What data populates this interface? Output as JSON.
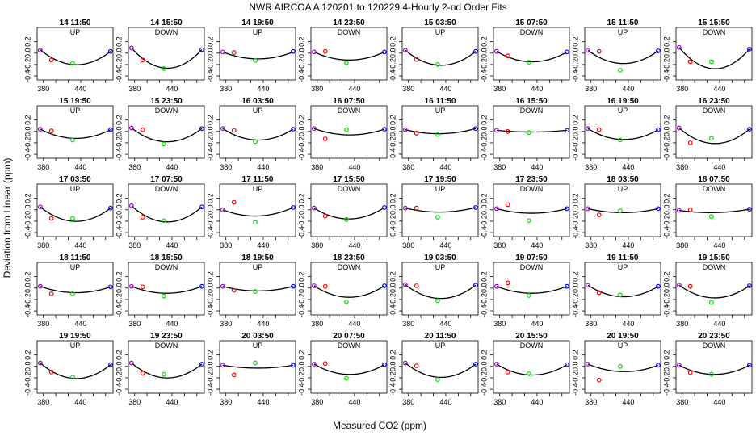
{
  "figure": {
    "title": "NWR   AIRCOA A   120201 to 120229   4-Hourly 2-nd Order Fits",
    "xlabel": "Measured CO2 (ppm)",
    "ylabel": "Deviation from Linear (ppm)"
  },
  "colors": {
    "fit_line": "#000000",
    "standard_1": "#9900cc",
    "standard_2": "#ff0000",
    "standard_3": "#00dd00",
    "standard_4": "#0000ff"
  },
  "chart_data": {
    "type": "scatter",
    "layout": "small multiples, 5 rows x 8 columns",
    "x_standards": [
      375,
      393,
      427,
      488
    ],
    "xlim": [
      370,
      492
    ],
    "ylim": [
      -0.47,
      0.45
    ],
    "x_ticks": [
      380,
      440
    ],
    "x_tick_labels": [
      "380",
      "440"
    ],
    "y_ticks": [
      -0.4,
      -0.2,
      0,
      0.2
    ],
    "y_tick_labels": [
      "-0.4",
      "-0.2",
      "0.0",
      "0.2"
    ],
    "panels": [
      {
        "title": "14 11:50",
        "dir": "UP",
        "y": [
          0.05,
          -0.12,
          -0.18,
          0.03
        ],
        "fit": [
          0.06,
          -0.1,
          -0.2,
          0.03
        ]
      },
      {
        "title": "14 15:50",
        "dir": "DOWN",
        "y": [
          0.09,
          -0.12,
          -0.27,
          0.06
        ],
        "fit": [
          0.09,
          -0.12,
          -0.26,
          0.06
        ]
      },
      {
        "title": "14 19:50",
        "dir": "UP",
        "y": [
          0.02,
          0.01,
          -0.13,
          0.03
        ],
        "fit": [
          0.02,
          -0.04,
          -0.1,
          0.02
        ]
      },
      {
        "title": "14 23:50",
        "dir": "DOWN",
        "y": [
          0.02,
          0.03,
          -0.17,
          0.02
        ],
        "fit": [
          0.02,
          -0.05,
          -0.12,
          0.02
        ]
      },
      {
        "title": "15 03:50",
        "dir": "UP",
        "y": [
          0.05,
          -0.11,
          -0.2,
          0.03
        ],
        "fit": [
          0.05,
          -0.11,
          -0.21,
          0.03
        ]
      },
      {
        "title": "15 07:50",
        "dir": "DOWN",
        "y": [
          0.03,
          -0.05,
          -0.16,
          0.02
        ],
        "fit": [
          0.03,
          -0.08,
          -0.15,
          0.02
        ]
      },
      {
        "title": "15 11:50",
        "dir": "UP",
        "y": [
          0.05,
          0.03,
          -0.3,
          0.04
        ],
        "fit": [
          0.05,
          -0.08,
          -0.18,
          0.04
        ]
      },
      {
        "title": "15 15:50",
        "dir": "DOWN",
        "y": [
          0.1,
          -0.15,
          -0.15,
          0.07
        ],
        "fit": [
          0.1,
          -0.13,
          -0.27,
          0.07
        ]
      },
      {
        "title": "15 19:50",
        "dir": "UP",
        "y": [
          0.04,
          0.01,
          -0.15,
          0.03
        ],
        "fit": [
          0.04,
          -0.05,
          -0.12,
          0.03
        ]
      },
      {
        "title": "15 23:50",
        "dir": "DOWN",
        "y": [
          0.06,
          0.03,
          -0.22,
          0.05
        ],
        "fit": [
          0.06,
          -0.08,
          -0.18,
          0.05
        ]
      },
      {
        "title": "16 03:50",
        "dir": "UP",
        "y": [
          0.05,
          0.02,
          -0.18,
          0.04
        ],
        "fit": [
          0.05,
          -0.06,
          -0.15,
          0.04
        ]
      },
      {
        "title": "16 07:50",
        "dir": "DOWN",
        "y": [
          0.05,
          -0.13,
          0.03,
          0.04
        ],
        "fit": [
          0.05,
          -0.02,
          -0.06,
          0.04
        ]
      },
      {
        "title": "16 11:50",
        "dir": "UP",
        "y": [
          0.03,
          -0.03,
          -0.05,
          0.05
        ],
        "fit": [
          0.03,
          -0.01,
          -0.04,
          0.05
        ]
      },
      {
        "title": "16 15:50",
        "dir": "DOWN",
        "y": [
          0.02,
          0.0,
          -0.02,
          0.02
        ],
        "fit": [
          0.02,
          0.0,
          -0.01,
          0.02
        ]
      },
      {
        "title": "16 19:50",
        "dir": "UP",
        "y": [
          0.05,
          0.03,
          -0.15,
          0.03
        ],
        "fit": [
          0.05,
          -0.06,
          -0.14,
          0.03
        ]
      },
      {
        "title": "16 23:50",
        "dir": "DOWN",
        "y": [
          0.06,
          -0.2,
          -0.12,
          0.04
        ],
        "fit": [
          0.06,
          -0.11,
          -0.21,
          0.04
        ]
      },
      {
        "title": "17 03:50",
        "dir": "UP",
        "y": [
          0.05,
          -0.15,
          -0.15,
          0.03
        ],
        "fit": [
          0.05,
          -0.1,
          -0.2,
          0.03
        ]
      },
      {
        "title": "17 07:50",
        "dir": "DOWN",
        "y": [
          0.07,
          -0.13,
          -0.19,
          0.05
        ],
        "fit": [
          0.07,
          -0.1,
          -0.21,
          0.05
        ]
      },
      {
        "title": "17 11:50",
        "dir": "UP",
        "y": [
          0.0,
          0.13,
          -0.22,
          0.04
        ],
        "fit": [
          0.0,
          -0.05,
          -0.11,
          0.04
        ]
      },
      {
        "title": "17 15:50",
        "dir": "DOWN",
        "y": [
          0.03,
          -0.11,
          -0.17,
          0.04
        ],
        "fit": [
          0.03,
          -0.09,
          -0.16,
          0.04
        ]
      },
      {
        "title": "17 19:50",
        "dir": "UP",
        "y": [
          0.03,
          0.03,
          -0.13,
          0.04
        ],
        "fit": [
          0.03,
          -0.01,
          -0.04,
          0.04
        ]
      },
      {
        "title": "17 23:50",
        "dir": "DOWN",
        "y": [
          0.02,
          0.09,
          -0.19,
          0.02
        ],
        "fit": [
          0.02,
          -0.03,
          -0.06,
          0.02
        ]
      },
      {
        "title": "18 03:50",
        "dir": "UP",
        "y": [
          0.02,
          -0.09,
          -0.02,
          0.02
        ],
        "fit": [
          0.02,
          -0.03,
          -0.05,
          0.02
        ]
      },
      {
        "title": "18 07:50",
        "dir": "DOWN",
        "y": [
          -0.01,
          0.0,
          -0.12,
          0.01
        ],
        "fit": [
          -0.01,
          -0.03,
          -0.05,
          0.01
        ]
      },
      {
        "title": "18 11:50",
        "dir": "UP",
        "y": [
          0.03,
          -0.1,
          -0.1,
          0.02
        ],
        "fit": [
          0.03,
          -0.04,
          -0.08,
          0.02
        ]
      },
      {
        "title": "18 15:50",
        "dir": "DOWN",
        "y": [
          0.03,
          0.02,
          -0.14,
          0.03
        ],
        "fit": [
          0.03,
          -0.04,
          -0.09,
          0.03
        ]
      },
      {
        "title": "18 19:50",
        "dir": "UP",
        "y": [
          0.03,
          -0.04,
          -0.06,
          0.03
        ],
        "fit": [
          0.03,
          -0.02,
          -0.05,
          0.03
        ]
      },
      {
        "title": "18 23:50",
        "dir": "DOWN",
        "y": [
          0.04,
          0.03,
          -0.24,
          0.04
        ],
        "fit": [
          0.04,
          -0.07,
          -0.16,
          0.04
        ]
      },
      {
        "title": "19 03:50",
        "dir": "UP",
        "y": [
          0.06,
          0.04,
          -0.22,
          0.05
        ],
        "fit": [
          0.06,
          -0.08,
          -0.18,
          0.05
        ]
      },
      {
        "title": "19 07:50",
        "dir": "DOWN",
        "y": [
          0.03,
          0.09,
          -0.13,
          0.03
        ],
        "fit": [
          0.03,
          -0.04,
          -0.09,
          0.03
        ]
      },
      {
        "title": "19 11:50",
        "dir": "UP",
        "y": [
          0.05,
          -0.08,
          -0.12,
          0.03
        ],
        "fit": [
          0.05,
          -0.07,
          -0.15,
          0.03
        ]
      },
      {
        "title": "19 15:50",
        "dir": "DOWN",
        "y": [
          0.05,
          0.03,
          -0.25,
          0.04
        ],
        "fit": [
          0.05,
          -0.08,
          -0.17,
          0.04
        ]
      },
      {
        "title": "19 19:50",
        "dir": "UP",
        "y": [
          0.06,
          -0.1,
          -0.19,
          0.03
        ],
        "fit": [
          0.06,
          -0.1,
          -0.21,
          0.03
        ]
      },
      {
        "title": "19 23:50",
        "dir": "DOWN",
        "y": [
          0.06,
          -0.12,
          -0.14,
          0.04
        ],
        "fit": [
          0.06,
          -0.1,
          -0.2,
          0.04
        ]
      },
      {
        "title": "20 03:50",
        "dir": "UP",
        "y": [
          0.02,
          -0.15,
          0.06,
          0.02
        ],
        "fit": [
          0.02,
          -0.01,
          -0.03,
          0.02
        ]
      },
      {
        "title": "20 07:50",
        "dir": "DOWN",
        "y": [
          0.04,
          0.05,
          -0.21,
          0.03
        ],
        "fit": [
          0.04,
          -0.06,
          -0.14,
          0.03
        ]
      },
      {
        "title": "20 11:50",
        "dir": "UP",
        "y": [
          0.06,
          0.01,
          -0.23,
          0.04
        ],
        "fit": [
          0.06,
          -0.09,
          -0.19,
          0.04
        ]
      },
      {
        "title": "20 15:50",
        "dir": "DOWN",
        "y": [
          0.04,
          -0.1,
          -0.13,
          0.03
        ],
        "fit": [
          0.04,
          -0.08,
          -0.15,
          0.03
        ]
      },
      {
        "title": "20 19:50",
        "dir": "UP",
        "y": [
          0.04,
          -0.24,
          0.0,
          0.02
        ],
        "fit": [
          0.04,
          -0.04,
          -0.09,
          0.02
        ]
      },
      {
        "title": "20 23:50",
        "dir": "DOWN",
        "y": [
          0.02,
          -0.11,
          -0.14,
          0.02
        ],
        "fit": [
          0.02,
          -0.08,
          -0.14,
          0.02
        ]
      }
    ]
  }
}
